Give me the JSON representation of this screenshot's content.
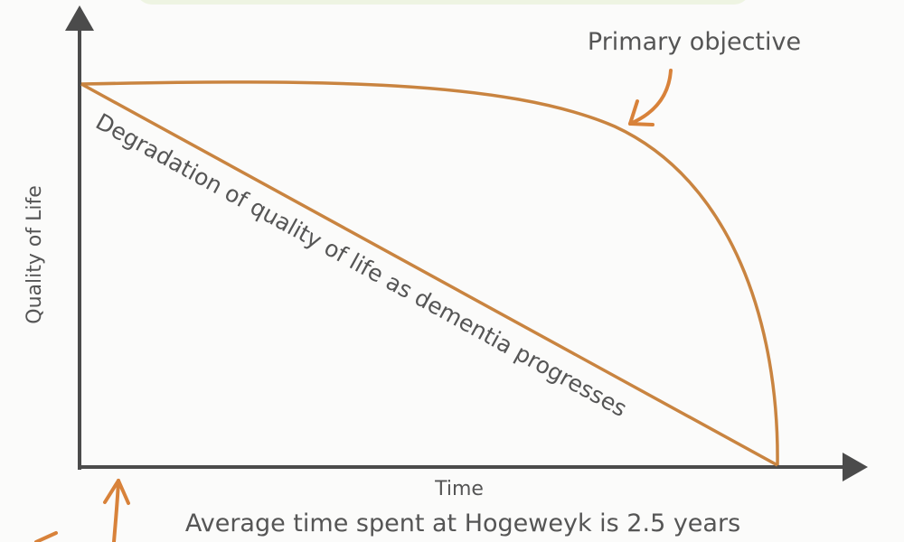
{
  "axes": {
    "y_label": "Quality of Life",
    "x_label": "Time"
  },
  "lines": {
    "degradation_label": "Degradation of quality of life as dementia progresses"
  },
  "annotations": {
    "primary": "Primary objective",
    "caption": "Average time spent at Hogeweyk is 2.5 years"
  }
}
